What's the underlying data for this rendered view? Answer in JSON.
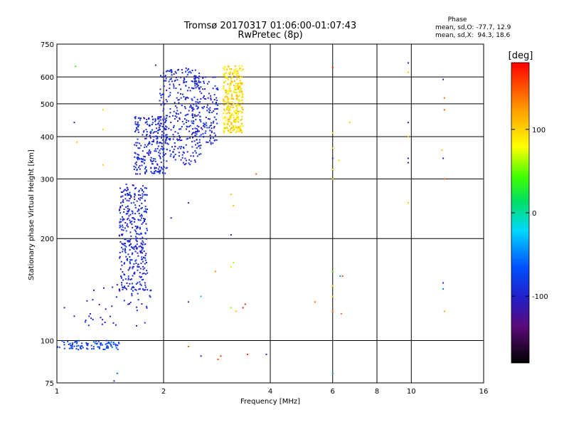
{
  "chart_data": {
    "type": "scatter",
    "title": "Tromsø 20170317 01:06:00-01:07:43",
    "subtitle": "RwPretec (8p)",
    "xlabel": "Frequency [MHz]",
    "ylabel": "Stationary phase Virtual Height [km]",
    "x_scale": "log",
    "y_scale": "log",
    "xlim": [
      1,
      16
    ],
    "ylim": [
      75,
      750
    ],
    "x_ticks": [
      1,
      2,
      4,
      6,
      8,
      10,
      16
    ],
    "y_ticks": [
      75,
      100,
      200,
      300,
      400,
      500,
      600,
      750
    ],
    "x_gridlines": [
      2,
      4,
      6,
      8,
      10
    ],
    "y_gridlines": [
      100,
      200,
      300,
      400,
      500,
      600
    ],
    "stats": {
      "heading": "Phase",
      "line_o": "mean, sd,O: -77.7, 12.9",
      "line_x": "mean, sd,X:  94.3, 18.6"
    },
    "colorbar": {
      "label": "[deg]",
      "range": [
        -180,
        180
      ],
      "ticks": [
        100,
        0,
        -100
      ]
    },
    "clusters": [
      {
        "x": [
          1.0,
          1.5
        ],
        "y": [
          94,
          100
        ],
        "phase": [
          -60,
          -90
        ],
        "count": 95
      },
      {
        "x": [
          1.2,
          1.85
        ],
        "y": [
          110,
          150
        ],
        "phase": [
          -110,
          -90
        ],
        "count": 45
      },
      {
        "x": [
          1.5,
          1.8
        ],
        "y": [
          140,
          290
        ],
        "phase": [
          -110,
          -80
        ],
        "count": 380
      },
      {
        "x": [
          1.65,
          2.05
        ],
        "y": [
          310,
          460
        ],
        "phase": [
          -110,
          -80
        ],
        "count": 260
      },
      {
        "x": [
          1.95,
          2.55
        ],
        "y": [
          330,
          640
        ],
        "phase": [
          -110,
          -80
        ],
        "count": 300
      },
      {
        "x": [
          2.4,
          2.85
        ],
        "y": [
          380,
          600
        ],
        "phase": [
          -110,
          -80
        ],
        "count": 160
      },
      {
        "x": [
          2.95,
          3.35
        ],
        "y": [
          410,
          650
        ],
        "phase": [
          70,
          120
        ],
        "count": 320
      }
    ],
    "points": [
      {
        "x": 1.13,
        "y": 645,
        "phase": 40
      },
      {
        "x": 1.9,
        "y": 650,
        "phase": -110
      },
      {
        "x": 1.12,
        "y": 440,
        "phase": -110
      },
      {
        "x": 1.35,
        "y": 480,
        "phase": 100
      },
      {
        "x": 1.35,
        "y": 420,
        "phase": 100
      },
      {
        "x": 1.14,
        "y": 385,
        "phase": 110
      },
      {
        "x": 1.35,
        "y": 330,
        "phase": 100
      },
      {
        "x": 1.05,
        "y": 125,
        "phase": -100
      },
      {
        "x": 1.12,
        "y": 118,
        "phase": -100
      },
      {
        "x": 1.48,
        "y": 80,
        "phase": -60
      },
      {
        "x": 1.45,
        "y": 76,
        "phase": -100
      },
      {
        "x": 2.35,
        "y": 96,
        "phase": 150
      },
      {
        "x": 2.55,
        "y": 90,
        "phase": -110
      },
      {
        "x": 2.9,
        "y": 90,
        "phase": 160
      },
      {
        "x": 2.85,
        "y": 88,
        "phase": 150
      },
      {
        "x": 3.45,
        "y": 91,
        "phase": 160
      },
      {
        "x": 3.9,
        "y": 91,
        "phase": -80
      },
      {
        "x": 3.65,
        "y": 310,
        "phase": 150
      },
      {
        "x": 3.1,
        "y": 270,
        "phase": 110
      },
      {
        "x": 3.15,
        "y": 250,
        "phase": 110
      },
      {
        "x": 3.1,
        "y": 205,
        "phase": -100
      },
      {
        "x": 3.1,
        "y": 165,
        "phase": 90
      },
      {
        "x": 3.15,
        "y": 170,
        "phase": 60
      },
      {
        "x": 2.8,
        "y": 160,
        "phase": 130
      },
      {
        "x": 3.1,
        "y": 125,
        "phase": 60
      },
      {
        "x": 3.2,
        "y": 122,
        "phase": 110
      },
      {
        "x": 3.35,
        "y": 125,
        "phase": 170
      },
      {
        "x": 3.4,
        "y": 128,
        "phase": 170
      },
      {
        "x": 2.55,
        "y": 135,
        "phase": -30
      },
      {
        "x": 2.35,
        "y": 130,
        "phase": -100
      },
      {
        "x": 2.1,
        "y": 230,
        "phase": -100
      },
      {
        "x": 2.35,
        "y": 255,
        "phase": -100
      },
      {
        "x": 5.35,
        "y": 130,
        "phase": 140
      },
      {
        "x": 6.0,
        "y": 640,
        "phase": 170
      },
      {
        "x": 6.0,
        "y": 410,
        "phase": 100
      },
      {
        "x": 6.0,
        "y": 370,
        "phase": 100
      },
      {
        "x": 6.0,
        "y": 345,
        "phase": -110
      },
      {
        "x": 6.0,
        "y": 320,
        "phase": 100
      },
      {
        "x": 6.0,
        "y": 300,
        "phase": 100
      },
      {
        "x": 6.0,
        "y": 160,
        "phase": 40
      },
      {
        "x": 6.0,
        "y": 145,
        "phase": 100
      },
      {
        "x": 6.0,
        "y": 135,
        "phase": 110
      },
      {
        "x": 6.0,
        "y": 122,
        "phase": 140
      },
      {
        "x": 6.0,
        "y": 80,
        "phase": -40
      },
      {
        "x": 6.25,
        "y": 340,
        "phase": 100
      },
      {
        "x": 6.3,
        "y": 155,
        "phase": -40
      },
      {
        "x": 6.4,
        "y": 155,
        "phase": 150
      },
      {
        "x": 6.35,
        "y": 120,
        "phase": 140
      },
      {
        "x": 6.7,
        "y": 440,
        "phase": 100
      },
      {
        "x": 9.8,
        "y": 660,
        "phase": -110
      },
      {
        "x": 9.8,
        "y": 620,
        "phase": 110
      },
      {
        "x": 9.8,
        "y": 440,
        "phase": -110
      },
      {
        "x": 9.8,
        "y": 400,
        "phase": 100
      },
      {
        "x": 9.8,
        "y": 345,
        "phase": -110
      },
      {
        "x": 9.8,
        "y": 335,
        "phase": -110
      },
      {
        "x": 9.8,
        "y": 255,
        "phase": 100
      },
      {
        "x": 12.3,
        "y": 590,
        "phase": -110
      },
      {
        "x": 12.4,
        "y": 520,
        "phase": 140
      },
      {
        "x": 12.4,
        "y": 480,
        "phase": 150
      },
      {
        "x": 12.2,
        "y": 365,
        "phase": 110
      },
      {
        "x": 12.3,
        "y": 345,
        "phase": -110
      },
      {
        "x": 12.4,
        "y": 300,
        "phase": 150
      },
      {
        "x": 12.3,
        "y": 148,
        "phase": -100
      },
      {
        "x": 12.3,
        "y": 142,
        "phase": -50
      },
      {
        "x": 12.4,
        "y": 122,
        "phase": 120
      }
    ]
  }
}
